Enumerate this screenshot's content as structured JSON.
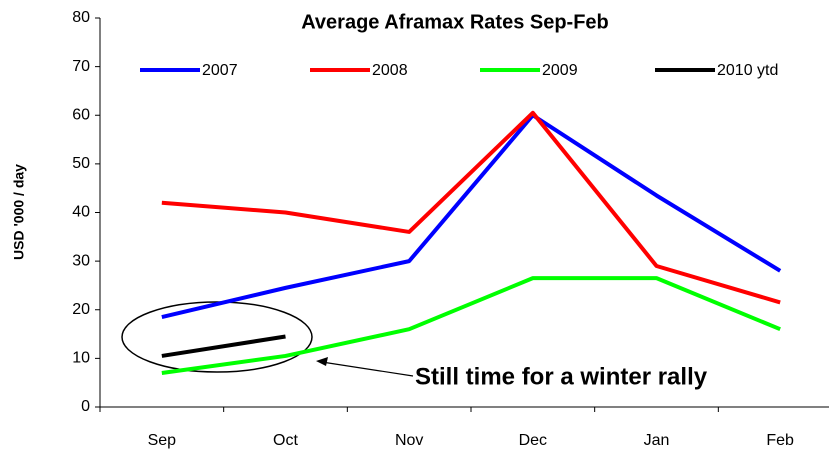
{
  "chart_data": {
    "type": "line",
    "title": "Average Aframax Rates Sep-Feb",
    "ylabel": "USD '000 / day",
    "categories": [
      "Sep",
      "Oct",
      "Nov",
      "Dec",
      "Jan",
      "Feb"
    ],
    "series": [
      {
        "name": "2007",
        "color": "#0000ff",
        "values": [
          18.5,
          24.5,
          30,
          60,
          43.5,
          28
        ]
      },
      {
        "name": "2008",
        "color": "#ff0000",
        "values": [
          42,
          40,
          36,
          60.5,
          29,
          21.5
        ]
      },
      {
        "name": "2009",
        "color": "#00ff00",
        "values": [
          7,
          10.5,
          16,
          26.5,
          26.5,
          16
        ]
      },
      {
        "name": "2010 ytd",
        "color": "#000000",
        "values": [
          10.5,
          14.5,
          null,
          null,
          null,
          null
        ]
      }
    ],
    "ylim": [
      0,
      80
    ],
    "yticks": [
      0,
      10,
      20,
      30,
      40,
      50,
      60,
      70,
      80
    ],
    "annotation": "Still time for a winter rally"
  }
}
